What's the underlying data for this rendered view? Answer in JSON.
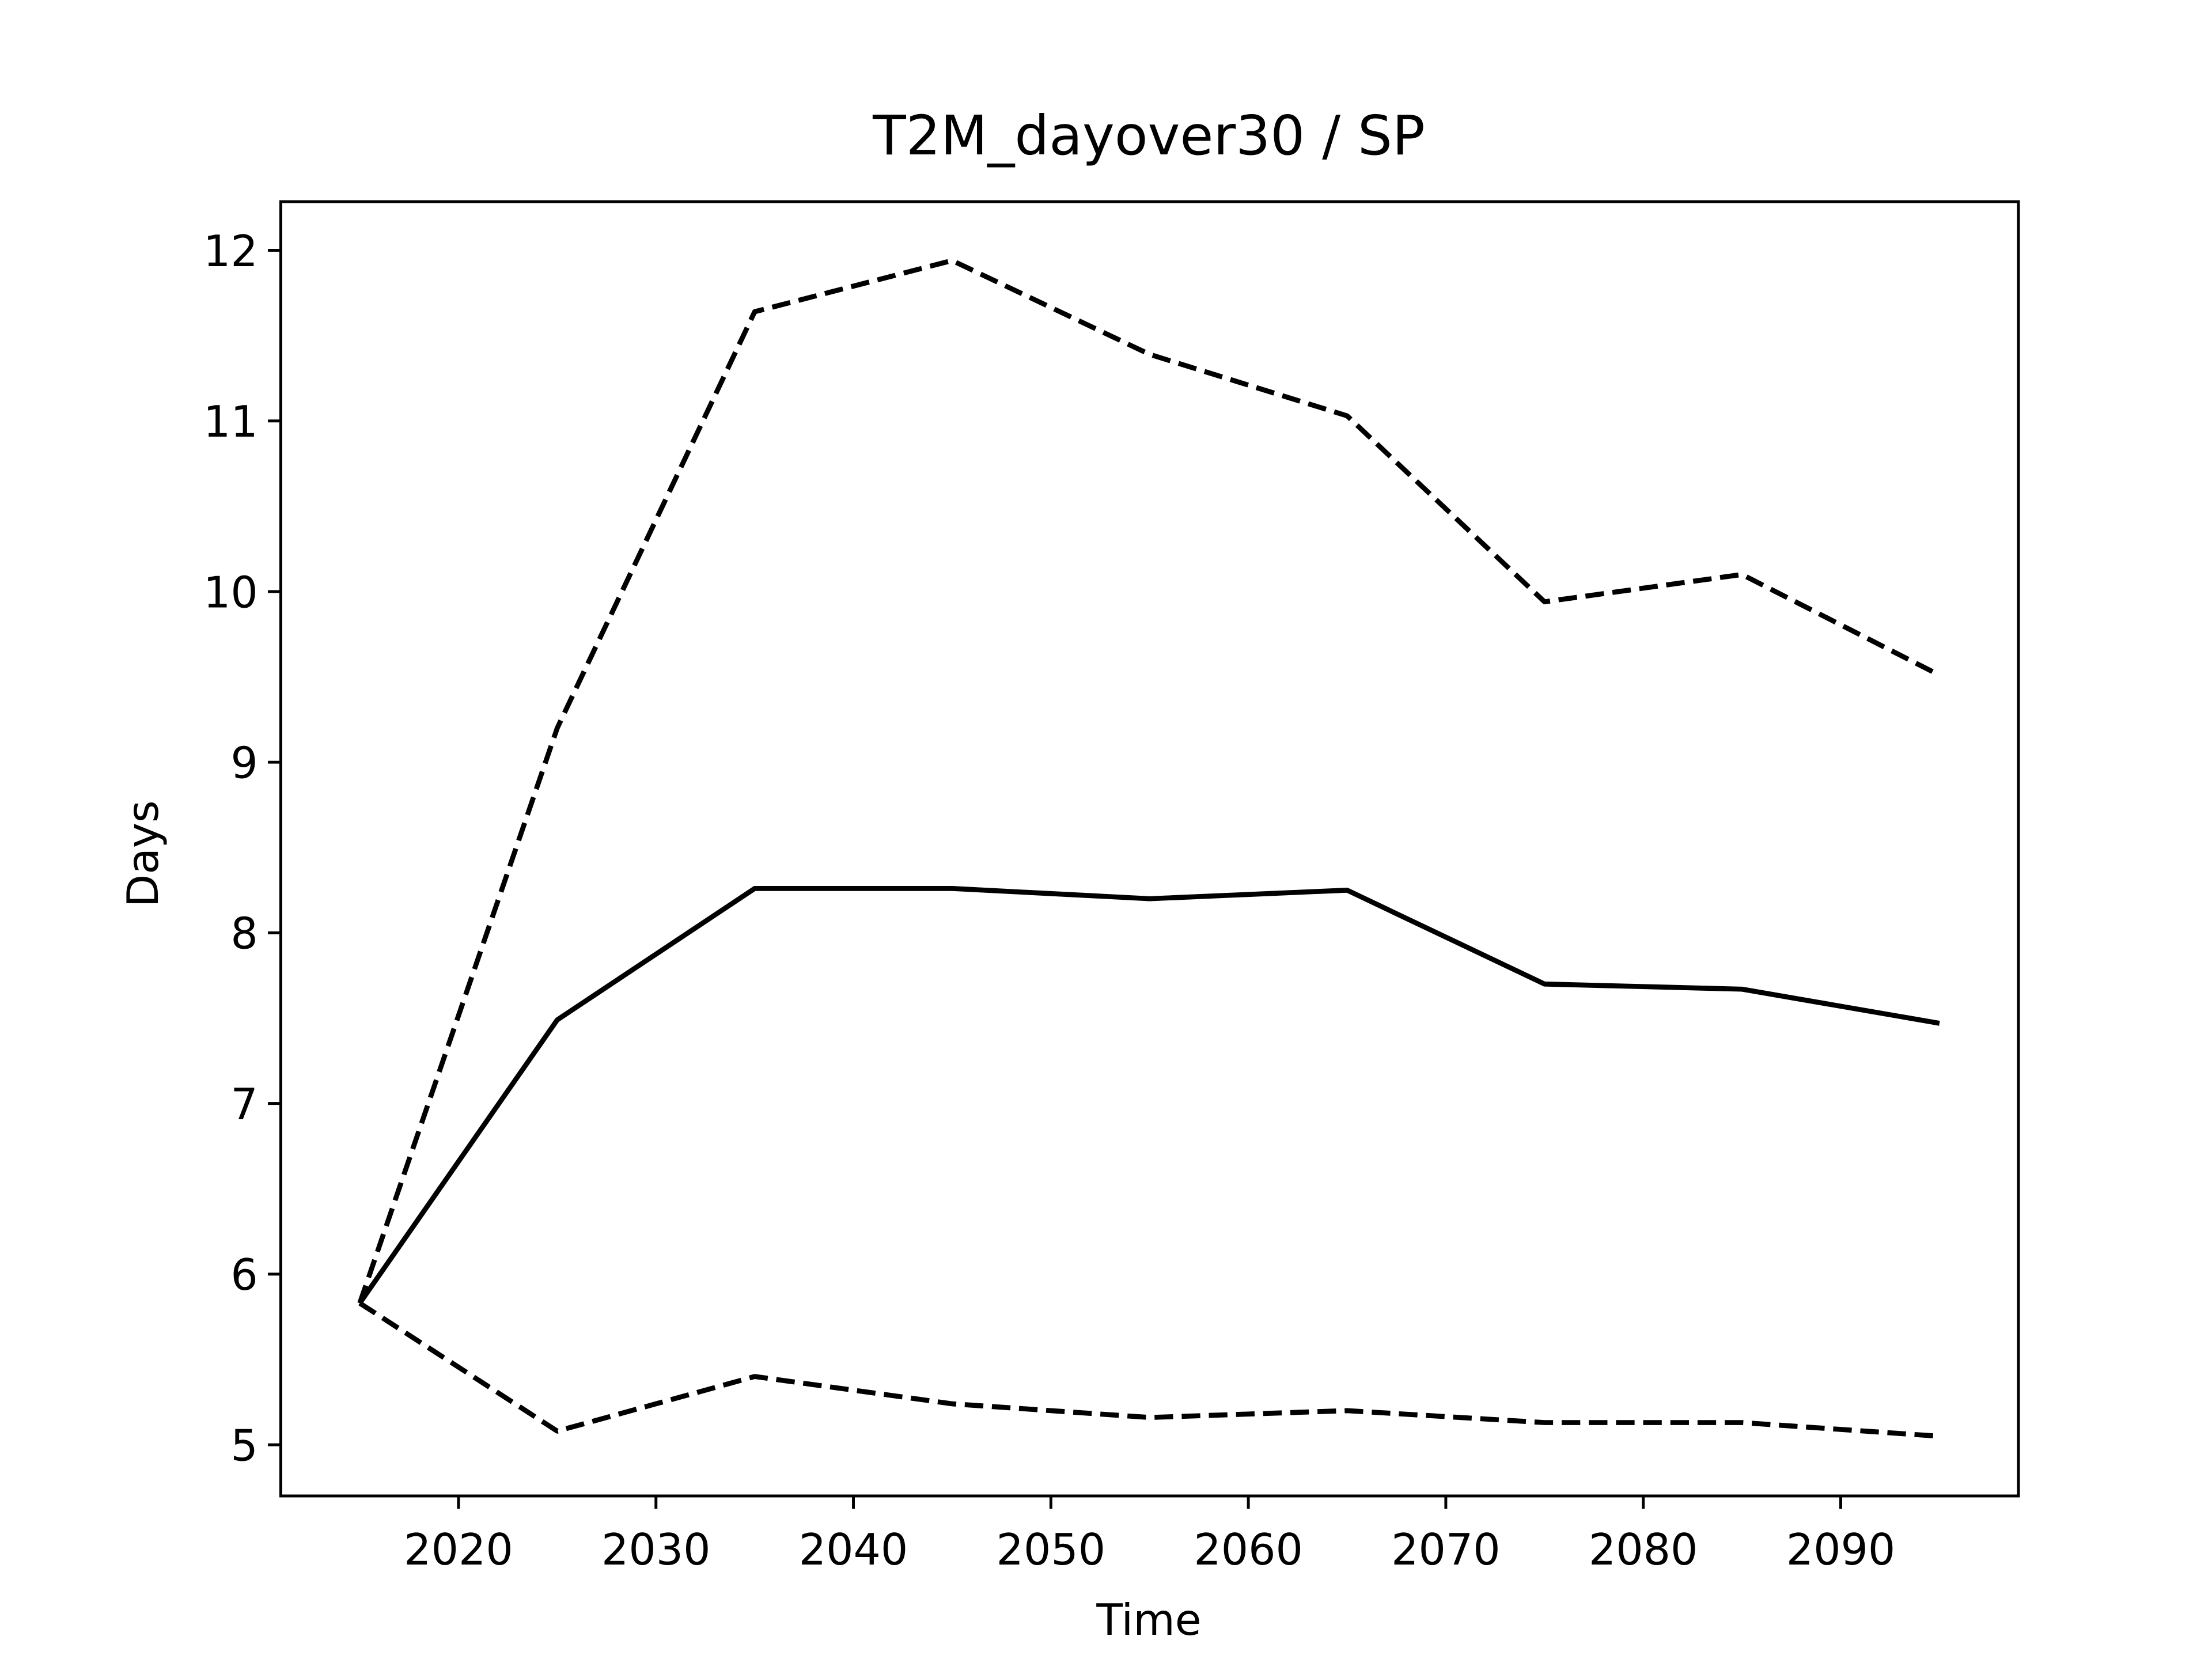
{
  "chart_data": {
    "type": "line",
    "title": "T2M_dayover30 / SP",
    "x_label": "Time",
    "y_label": "Days",
    "x": [
      2015,
      2025,
      2035,
      2045,
      2055,
      2065,
      2075,
      2085,
      2095
    ],
    "series": [
      {
        "color": "#000000",
        "linestyle": "solid",
        "values": [
          5.83,
          7.49,
          8.26,
          8.26,
          8.2,
          8.25,
          7.7,
          7.67,
          7.47
        ]
      },
      {
        "color": "#000000",
        "linestyle": "dashed",
        "values": [
          5.83,
          9.2,
          11.64,
          11.94,
          11.39,
          11.03,
          9.94,
          10.1,
          9.51
        ]
      },
      {
        "color": "#000000",
        "linestyle": "dashed",
        "values": [
          5.83,
          5.08,
          5.4,
          5.24,
          5.16,
          5.2,
          5.13,
          5.13,
          5.05
        ]
      }
    ],
    "xlim": [
      2011,
      2099
    ],
    "ylim": [
      4.7,
      12.285
    ],
    "xticks": [
      2020,
      2030,
      2040,
      2050,
      2060,
      2070,
      2080,
      2090
    ],
    "yticks": [
      5,
      6,
      7,
      8,
      9,
      10,
      11,
      12
    ],
    "grid": false
  }
}
